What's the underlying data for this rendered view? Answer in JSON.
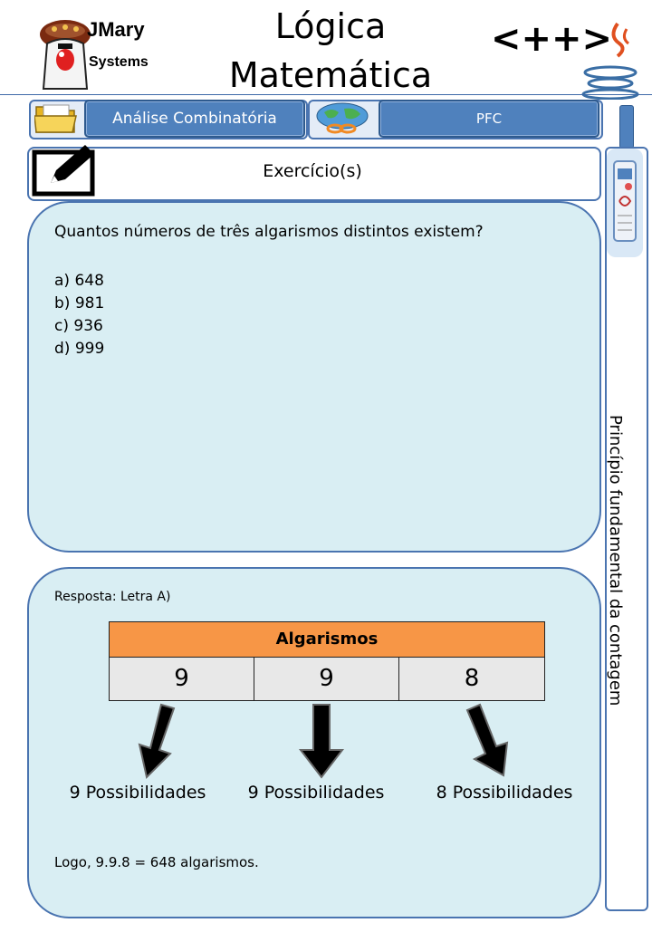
{
  "header": {
    "logo_name": "JMary",
    "logo_sub": "Systems",
    "title_line1": "Lógica",
    "title_line2": "Matemática",
    "right_logo_text": "<++>"
  },
  "nav": {
    "topic_label": "Análise Combinatória",
    "subtopic_label": "PFC"
  },
  "exercise": {
    "title": "Exercício(s)",
    "question": "Quantos números de três algarismos distintos existem?",
    "options": [
      "a) 648",
      "b) 981",
      "c) 936",
      "d) 999"
    ]
  },
  "answer": {
    "resposta": "Resposta:  Letra A)",
    "table_header": "Algarismos",
    "digits": [
      "9",
      "9",
      "8"
    ],
    "possibilities": [
      "9 Possibilidades",
      "9 Possibilidades",
      "8 Possibilidades"
    ],
    "conclusion": "Logo, 9.9.8 = 648 algarismos."
  },
  "sidebar": {
    "label": "Princípio fundamental da contagem"
  },
  "colors": {
    "accent": "#4f81bd",
    "panel": "#d9eef3",
    "table_header": "#f79646"
  }
}
